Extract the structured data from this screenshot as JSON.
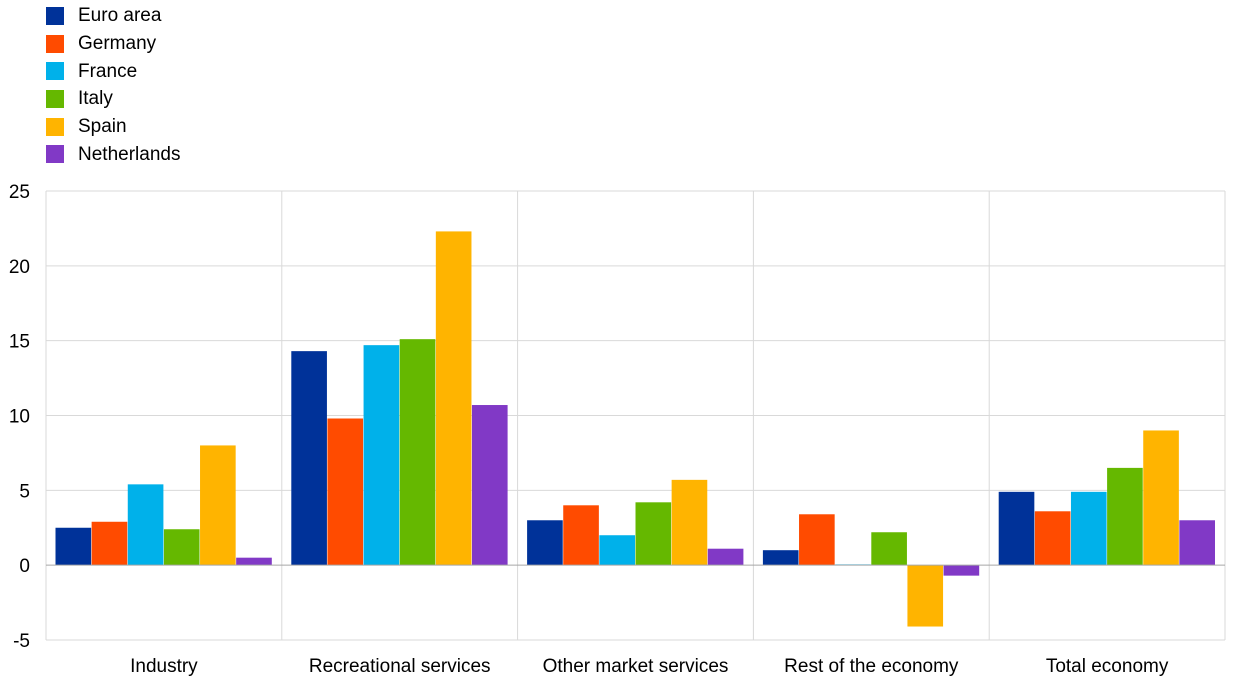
{
  "chart_data": {
    "type": "bar",
    "title": "",
    "xlabel": "",
    "ylabel": "",
    "ylim": [
      -5,
      25
    ],
    "yticks": [
      -5,
      0,
      5,
      10,
      15,
      20,
      25
    ],
    "grid": true,
    "legend_position": "top-left",
    "categories": [
      "Industry",
      "Recreational services",
      "Other market services",
      "Rest of the economy",
      "Total economy"
    ],
    "series": [
      {
        "name": "Euro area",
        "color": "#003299",
        "values": [
          2.5,
          14.3,
          3.0,
          1.0,
          4.9
        ]
      },
      {
        "name": "Germany",
        "color": "#FF4B00",
        "values": [
          2.9,
          9.8,
          4.0,
          3.4,
          3.6
        ]
      },
      {
        "name": "France",
        "color": "#00B1EA",
        "values": [
          5.4,
          14.7,
          2.0,
          0.05,
          4.9
        ]
      },
      {
        "name": "Italy",
        "color": "#65B800",
        "values": [
          2.4,
          15.1,
          4.2,
          2.2,
          6.5
        ]
      },
      {
        "name": "Spain",
        "color": "#FFB400",
        "values": [
          8.0,
          22.3,
          5.7,
          -4.1,
          9.0
        ]
      },
      {
        "name": "Netherlands",
        "color": "#8139C6",
        "values": [
          0.5,
          10.7,
          1.1,
          -0.7,
          3.0
        ]
      }
    ]
  }
}
